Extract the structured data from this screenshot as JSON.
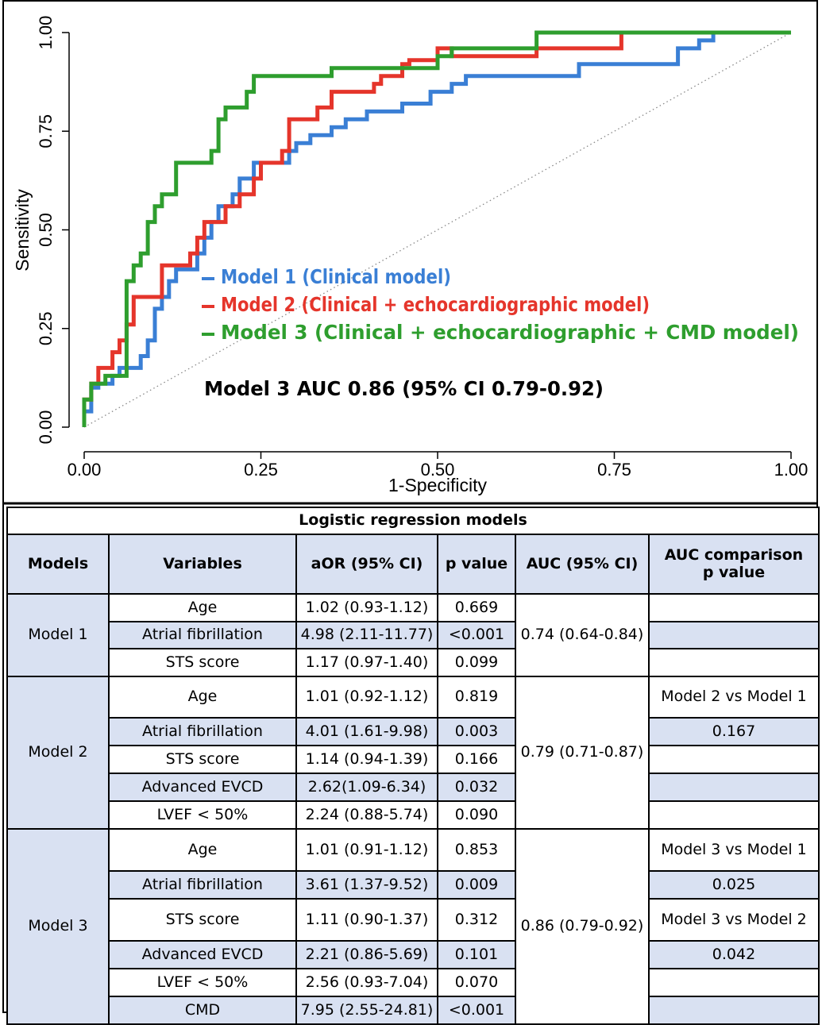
{
  "chart_data": {
    "type": "line",
    "title": "",
    "xlabel": "1-Specificity",
    "ylabel": "Sensitivity",
    "xlim": [
      0,
      1
    ],
    "ylim": [
      0,
      1
    ],
    "xticks": [
      "0.00",
      "0.25",
      "0.50",
      "0.75",
      "1.00"
    ],
    "yticks": [
      "0.00",
      "0.25",
      "0.50",
      "0.75",
      "1.00"
    ],
    "grid": false,
    "legend": "center",
    "reference_line": "diagonal dotted",
    "annotation": "Model 3 AUC 0.86 (95% CI 0.79-0.92)",
    "series": [
      {
        "name": "Model 1 (Clinical model)",
        "color": "#3a7fd5",
        "points": [
          [
            0,
            0
          ],
          [
            0,
            0.04
          ],
          [
            0.01,
            0.04
          ],
          [
            0.01,
            0.07
          ],
          [
            0.01,
            0.1
          ],
          [
            0.02,
            0.1
          ],
          [
            0.02,
            0.11
          ],
          [
            0.04,
            0.11
          ],
          [
            0.04,
            0.13
          ],
          [
            0.05,
            0.13
          ],
          [
            0.05,
            0.15
          ],
          [
            0.08,
            0.15
          ],
          [
            0.08,
            0.18
          ],
          [
            0.09,
            0.18
          ],
          [
            0.09,
            0.22
          ],
          [
            0.1,
            0.22
          ],
          [
            0.1,
            0.27
          ],
          [
            0.1,
            0.3
          ],
          [
            0.11,
            0.3
          ],
          [
            0.11,
            0.33
          ],
          [
            0.12,
            0.33
          ],
          [
            0.12,
            0.37
          ],
          [
            0.13,
            0.37
          ],
          [
            0.13,
            0.4
          ],
          [
            0.16,
            0.4
          ],
          [
            0.16,
            0.44
          ],
          [
            0.17,
            0.44
          ],
          [
            0.17,
            0.48
          ],
          [
            0.18,
            0.48
          ],
          [
            0.18,
            0.52
          ],
          [
            0.19,
            0.52
          ],
          [
            0.19,
            0.56
          ],
          [
            0.21,
            0.56
          ],
          [
            0.21,
            0.59
          ],
          [
            0.22,
            0.59
          ],
          [
            0.22,
            0.63
          ],
          [
            0.24,
            0.63
          ],
          [
            0.24,
            0.67
          ],
          [
            0.29,
            0.67
          ],
          [
            0.29,
            0.7
          ],
          [
            0.3,
            0.7
          ],
          [
            0.3,
            0.72
          ],
          [
            0.32,
            0.72
          ],
          [
            0.32,
            0.74
          ],
          [
            0.35,
            0.74
          ],
          [
            0.35,
            0.76
          ],
          [
            0.37,
            0.76
          ],
          [
            0.37,
            0.78
          ],
          [
            0.4,
            0.78
          ],
          [
            0.4,
            0.8
          ],
          [
            0.45,
            0.8
          ],
          [
            0.45,
            0.82
          ],
          [
            0.49,
            0.82
          ],
          [
            0.49,
            0.85
          ],
          [
            0.52,
            0.85
          ],
          [
            0.52,
            0.87
          ],
          [
            0.54,
            0.87
          ],
          [
            0.54,
            0.89
          ],
          [
            0.7,
            0.89
          ],
          [
            0.7,
            0.92
          ],
          [
            0.84,
            0.92
          ],
          [
            0.84,
            0.96
          ],
          [
            0.87,
            0.96
          ],
          [
            0.87,
            0.98
          ],
          [
            0.89,
            0.98
          ],
          [
            0.89,
            1
          ],
          [
            1,
            1
          ]
        ]
      },
      {
        "name": "Model 2 (Clinical + echocardiographic model)",
        "color": "#e5352b",
        "points": [
          [
            0,
            0
          ],
          [
            0,
            0.07
          ],
          [
            0.01,
            0.07
          ],
          [
            0.01,
            0.11
          ],
          [
            0.02,
            0.11
          ],
          [
            0.02,
            0.15
          ],
          [
            0.04,
            0.15
          ],
          [
            0.04,
            0.17
          ],
          [
            0.04,
            0.19
          ],
          [
            0.05,
            0.19
          ],
          [
            0.05,
            0.22
          ],
          [
            0.06,
            0.22
          ],
          [
            0.06,
            0.26
          ],
          [
            0.07,
            0.26
          ],
          [
            0.07,
            0.3
          ],
          [
            0.07,
            0.33
          ],
          [
            0.11,
            0.33
          ],
          [
            0.11,
            0.37
          ],
          [
            0.11,
            0.41
          ],
          [
            0.15,
            0.41
          ],
          [
            0.15,
            0.44
          ],
          [
            0.16,
            0.44
          ],
          [
            0.16,
            0.48
          ],
          [
            0.17,
            0.48
          ],
          [
            0.17,
            0.52
          ],
          [
            0.2,
            0.52
          ],
          [
            0.2,
            0.56
          ],
          [
            0.22,
            0.56
          ],
          [
            0.22,
            0.59
          ],
          [
            0.24,
            0.59
          ],
          [
            0.24,
            0.63
          ],
          [
            0.25,
            0.63
          ],
          [
            0.25,
            0.67
          ],
          [
            0.28,
            0.67
          ],
          [
            0.28,
            0.7
          ],
          [
            0.29,
            0.7
          ],
          [
            0.29,
            0.74
          ],
          [
            0.29,
            0.78
          ],
          [
            0.33,
            0.78
          ],
          [
            0.33,
            0.81
          ],
          [
            0.35,
            0.81
          ],
          [
            0.35,
            0.85
          ],
          [
            0.41,
            0.85
          ],
          [
            0.41,
            0.87
          ],
          [
            0.42,
            0.87
          ],
          [
            0.42,
            0.89
          ],
          [
            0.45,
            0.89
          ],
          [
            0.45,
            0.92
          ],
          [
            0.46,
            0.92
          ],
          [
            0.46,
            0.93
          ],
          [
            0.5,
            0.93
          ],
          [
            0.5,
            0.96
          ],
          [
            0.52,
            0.96
          ],
          [
            0.52,
            0.94
          ],
          [
            0.64,
            0.94
          ],
          [
            0.64,
            0.96
          ],
          [
            0.76,
            0.96
          ],
          [
            0.76,
            1
          ],
          [
            1,
            1
          ]
        ]
      },
      {
        "name": "Model 3 (Clinical + echocardiographic + CMD model)",
        "color": "#2e9e2e",
        "points": [
          [
            0,
            0
          ],
          [
            0,
            0.07
          ],
          [
            0.01,
            0.07
          ],
          [
            0.01,
            0.11
          ],
          [
            0.03,
            0.11
          ],
          [
            0.03,
            0.13
          ],
          [
            0.06,
            0.13
          ],
          [
            0.06,
            0.26
          ],
          [
            0.06,
            0.37
          ],
          [
            0.07,
            0.37
          ],
          [
            0.07,
            0.41
          ],
          [
            0.08,
            0.41
          ],
          [
            0.08,
            0.44
          ],
          [
            0.09,
            0.44
          ],
          [
            0.09,
            0.48
          ],
          [
            0.09,
            0.52
          ],
          [
            0.1,
            0.52
          ],
          [
            0.1,
            0.56
          ],
          [
            0.11,
            0.56
          ],
          [
            0.11,
            0.59
          ],
          [
            0.13,
            0.59
          ],
          [
            0.13,
            0.63
          ],
          [
            0.13,
            0.67
          ],
          [
            0.18,
            0.67
          ],
          [
            0.18,
            0.7
          ],
          [
            0.19,
            0.7
          ],
          [
            0.19,
            0.74
          ],
          [
            0.19,
            0.78
          ],
          [
            0.2,
            0.78
          ],
          [
            0.2,
            0.81
          ],
          [
            0.23,
            0.81
          ],
          [
            0.23,
            0.85
          ],
          [
            0.24,
            0.85
          ],
          [
            0.24,
            0.89
          ],
          [
            0.35,
            0.89
          ],
          [
            0.35,
            0.91
          ],
          [
            0.5,
            0.91
          ],
          [
            0.5,
            0.94
          ],
          [
            0.52,
            0.94
          ],
          [
            0.52,
            0.96
          ],
          [
            0.64,
            0.96
          ],
          [
            0.64,
            1
          ],
          [
            1,
            1
          ]
        ]
      }
    ]
  },
  "table": {
    "caption": "Logistic regression models",
    "headers": [
      "Models",
      "Variables",
      "aOR (95% CI)",
      "p value",
      "AUC (95% CI)",
      "AUC comparison p value"
    ],
    "groups": [
      {
        "model": "Model 1",
        "auc": "0.74 (0.64-0.84)",
        "rows": [
          {
            "variable": "Age",
            "aor": "1.02 (0.93-1.12)",
            "p": "0.669",
            "cmp": ""
          },
          {
            "variable": "Atrial fibrillation",
            "aor": "4.98 (2.11-11.77)",
            "p": "<0.001",
            "cmp": ""
          },
          {
            "variable": "STS score",
            "aor": "1.17 (0.97-1.40)",
            "p": "0.099",
            "cmp": ""
          }
        ]
      },
      {
        "model": "Model 2",
        "auc": "0.79 (0.71-0.87)",
        "rows": [
          {
            "variable": "Age",
            "aor": "1.01 (0.92-1.12)",
            "p": "0.819",
            "cmp": "Model 2 vs Model 1"
          },
          {
            "variable": "Atrial fibrillation",
            "aor": "4.01 (1.61-9.98)",
            "p": "0.003",
            "cmp": "0.167"
          },
          {
            "variable": "STS score",
            "aor": "1.14 (0.94-1.39)",
            "p": "0.166",
            "cmp": ""
          },
          {
            "variable": "Advanced EVCD",
            "aor": "2.62(1.09-6.34)",
            "p": "0.032",
            "cmp": ""
          },
          {
            "variable": "LVEF < 50%",
            "aor": "2.24 (0.88-5.74)",
            "p": "0.090",
            "cmp": ""
          }
        ]
      },
      {
        "model": "Model 3",
        "auc": "0.86 (0.79-0.92)",
        "rows": [
          {
            "variable": "Age",
            "aor": "1.01 (0.91-1.12)",
            "p": "0.853",
            "cmp": "Model 3 vs Model 1"
          },
          {
            "variable": "Atrial fibrillation",
            "aor": "3.61 (1.37-9.52)",
            "p": "0.009",
            "cmp": "0.025"
          },
          {
            "variable": "STS score",
            "aor": "1.11 (0.90-1.37)",
            "p": "0.312",
            "cmp": "Model 3 vs Model 2"
          },
          {
            "variable": "Advanced EVCD",
            "aor": "2.21 (0.86-5.69)",
            "p": "0.101",
            "cmp": "0.042"
          },
          {
            "variable": "LVEF < 50%",
            "aor": "2.56 (0.93-7.04)",
            "p": "0.070",
            "cmp": ""
          },
          {
            "variable": "CMD",
            "aor": "7.95 (2.55-24.81)",
            "p": "<0.001",
            "cmp": ""
          }
        ]
      }
    ]
  }
}
